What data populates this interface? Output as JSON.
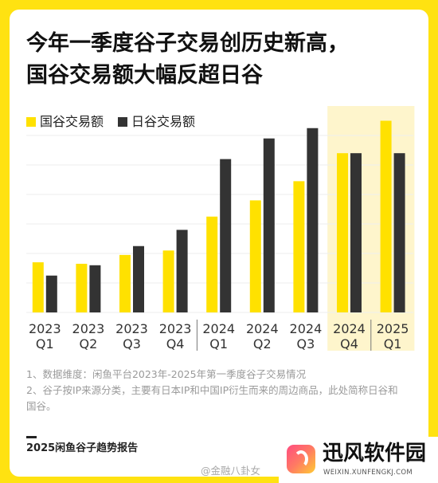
{
  "title": {
    "line1": "今年一季度谷子交易创历史新高，",
    "line2": "国谷交易额大幅反超日谷"
  },
  "chart_data": {
    "type": "bar",
    "categories": [
      {
        "year": "2023",
        "quarter": "Q1"
      },
      {
        "year": "2023",
        "quarter": "Q2"
      },
      {
        "year": "2023",
        "quarter": "Q3"
      },
      {
        "year": "2023",
        "quarter": "Q4"
      },
      {
        "year": "2024",
        "quarter": "Q1"
      },
      {
        "year": "2024",
        "quarter": "Q2"
      },
      {
        "year": "2024",
        "quarter": "Q3"
      },
      {
        "year": "2024",
        "quarter": "Q4"
      },
      {
        "year": "2025",
        "quarter": "Q1"
      }
    ],
    "series": [
      {
        "name": "国谷交易额",
        "color": "#FFE100",
        "values": [
          17,
          16.5,
          19.5,
          21,
          32.5,
          38,
          44.5,
          54,
          65
        ]
      },
      {
        "name": "日谷交易额",
        "color": "#333333",
        "values": [
          12.5,
          16,
          22.5,
          28,
          52,
          59,
          62.5,
          54,
          54
        ]
      }
    ],
    "ylim": [
      0,
      66
    ],
    "grid": true,
    "grid_step": 10,
    "legend_position": "top-left",
    "highlight_range": [
      7,
      8
    ],
    "highlight_color": "#FEF5CC",
    "group_separators_after": [
      3,
      7
    ]
  },
  "notes": [
    "1、数据维度：闲鱼平台2023年-2025年第一季度谷子交易情况",
    "2、谷子按IP来源分类，主要有日本IP和中国IP衍生而来的周边商品，此处简称日谷和",
    "国谷。"
  ],
  "footer": {
    "report_title": "2025闲鱼谷子趋势报告"
  },
  "watermark": {
    "text": "@金融八卦女"
  },
  "logo": {
    "name": "迅风软件园",
    "url_text": "WEIXIN.XUNFENGKJ.COM",
    "icon": "brand-logo-icon"
  },
  "colors": {
    "frame": "#FFE211",
    "card": "#FFFFFF",
    "gridline": "#EEEEEE",
    "tick_text": "#333333",
    "separator": "#777777"
  }
}
